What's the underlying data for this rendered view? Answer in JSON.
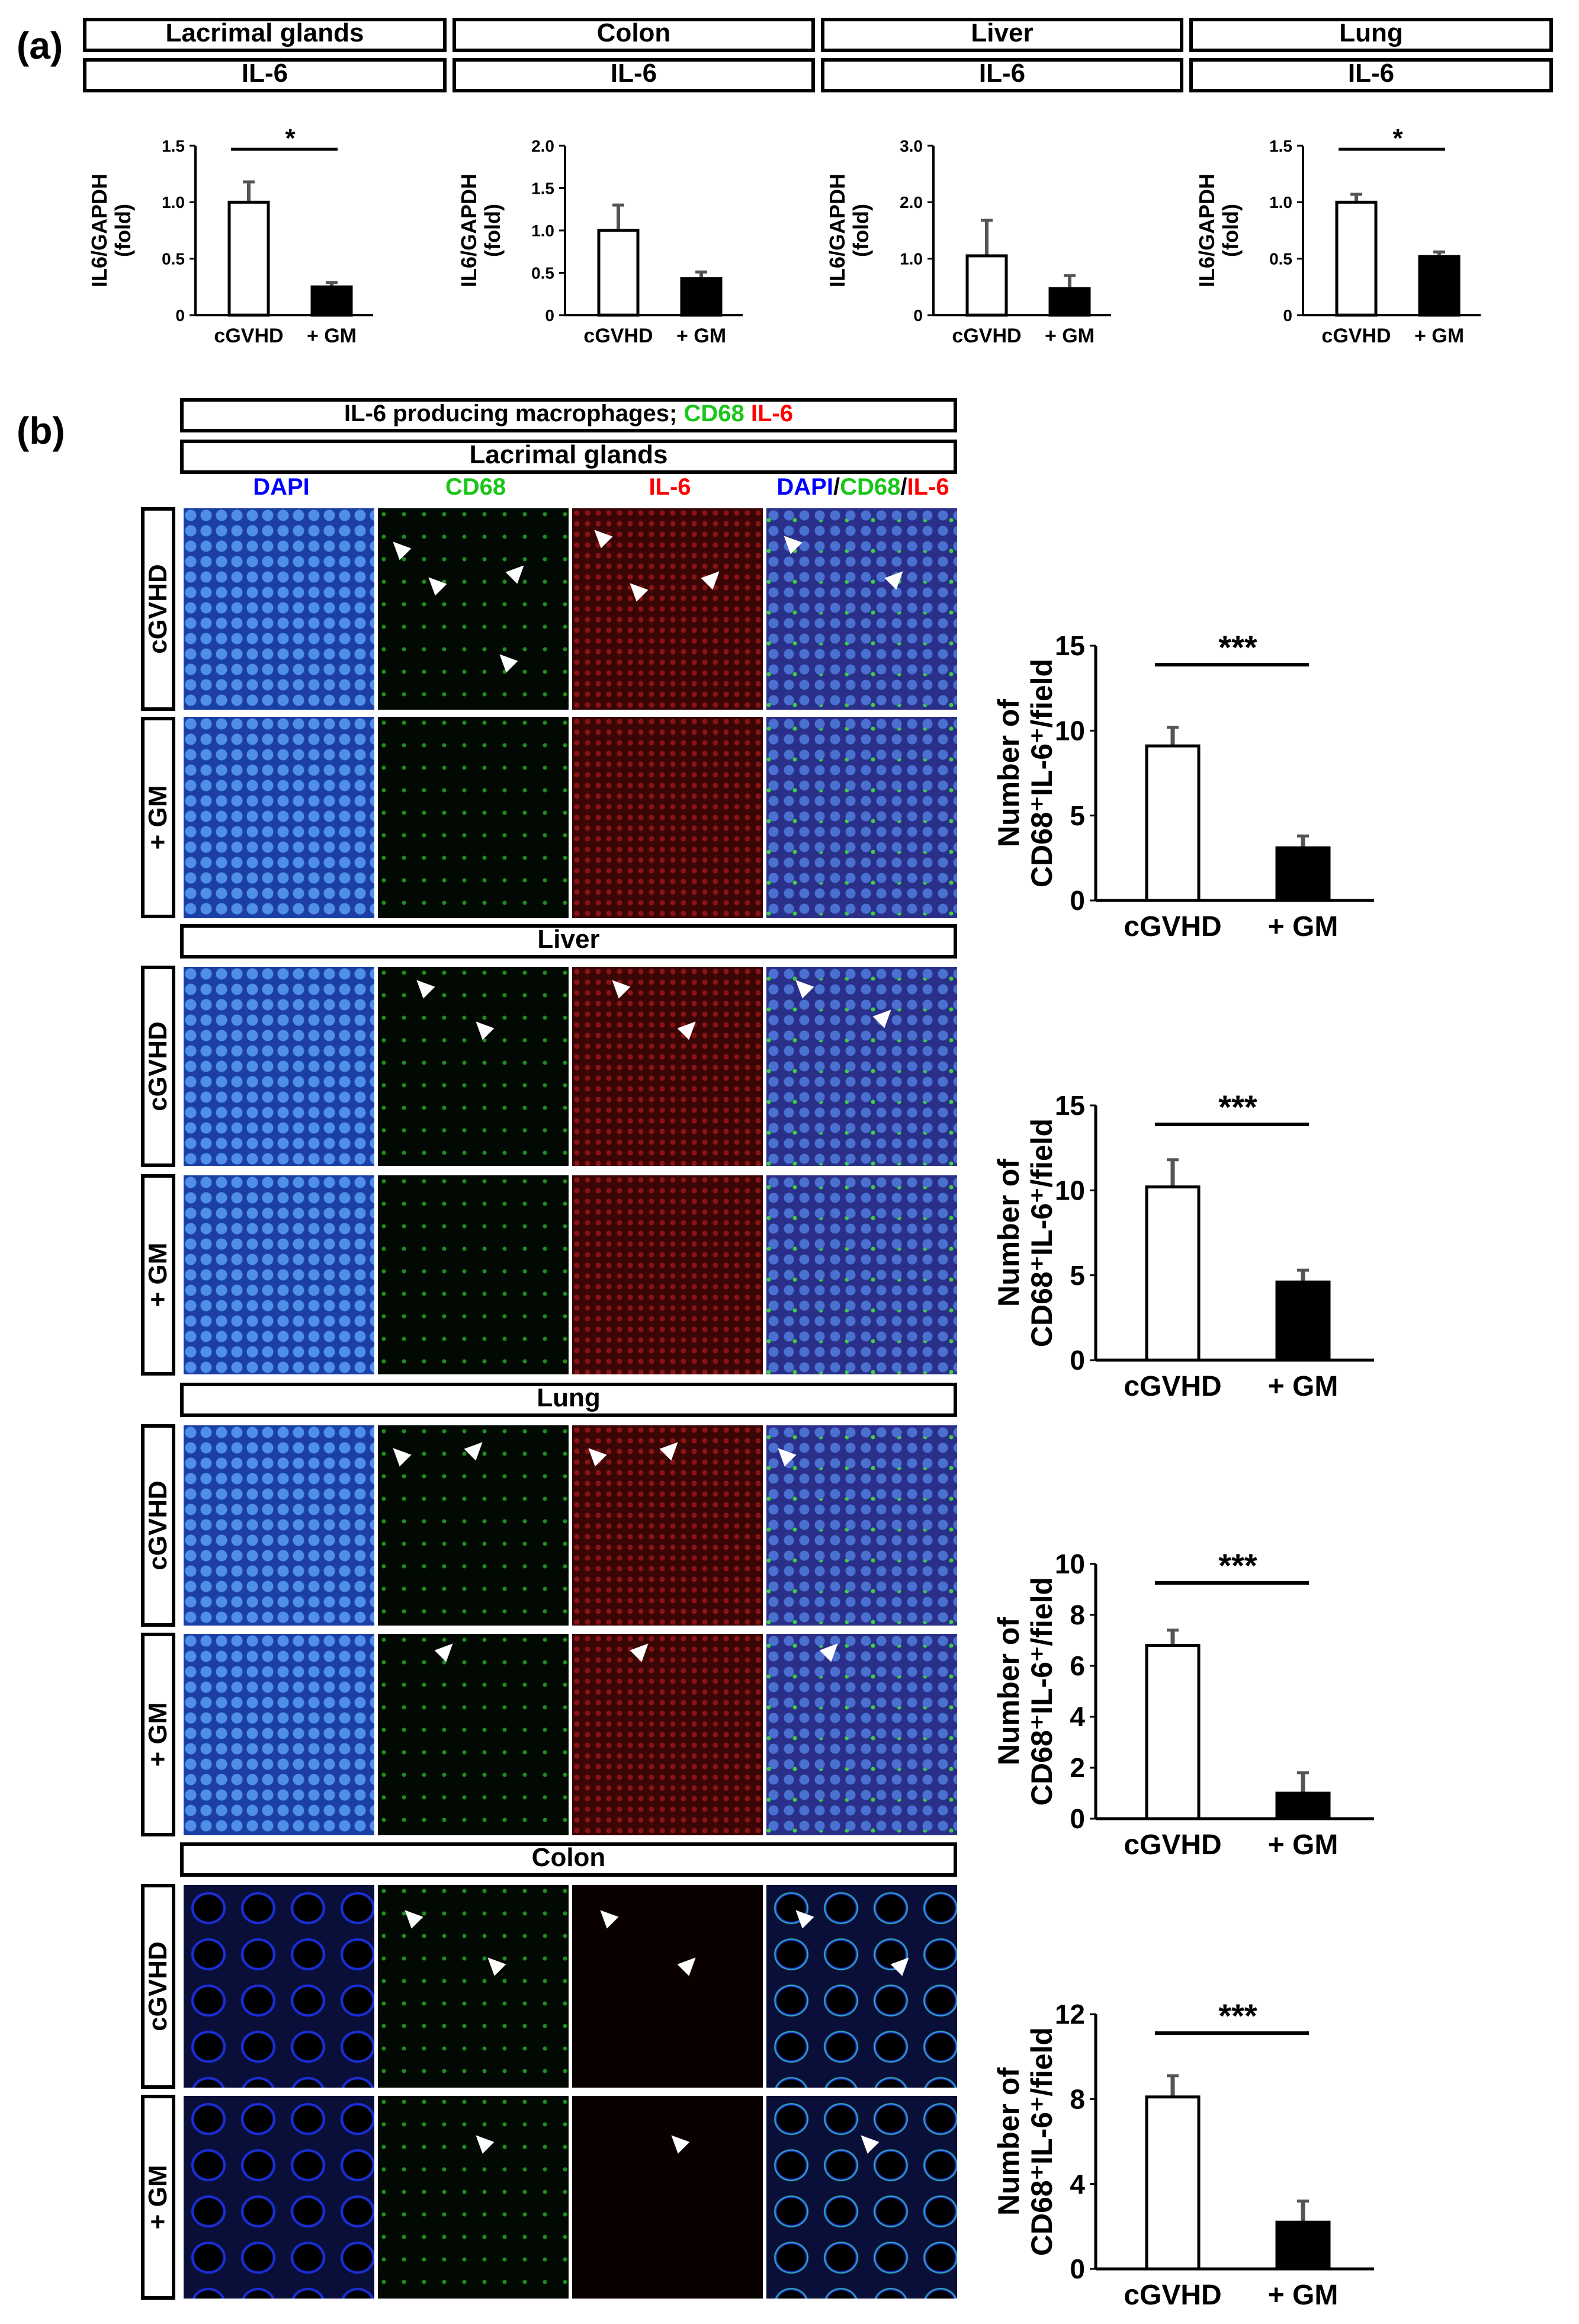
{
  "panel_a": {
    "letter": "(a)",
    "headers": [
      {
        "tissue": "Lacrimal glands",
        "marker": "IL-6"
      },
      {
        "tissue": "Colon",
        "marker": "IL-6"
      },
      {
        "tissue": "Liver",
        "marker": "IL-6"
      },
      {
        "tissue": "Lung",
        "marker": "IL-6"
      }
    ]
  },
  "panel_b": {
    "letter": "(b)",
    "title_prefix": "IL-6 producing macrophages; ",
    "title_cd68": "CD68",
    "title_il6": "IL-6",
    "column_headers": {
      "dapi": "DAPI",
      "cd68": "CD68",
      "il6": "IL-6",
      "merge_dapi": "DAPI",
      "merge_sep1": "/",
      "merge_cd68": "CD68",
      "merge_sep2": "/",
      "merge_il6": "IL-6"
    },
    "sections": [
      {
        "tissue": "Lacrimal glands",
        "rows": [
          "cGVHD",
          "+ GM"
        ]
      },
      {
        "tissue": "Liver",
        "rows": [
          "cGVHD",
          "+ GM"
        ]
      },
      {
        "tissue": "Lung",
        "rows": [
          "cGVHD",
          "+ GM"
        ]
      },
      {
        "tissue": "Colon",
        "rows": [
          "cGVHD",
          "+ GM"
        ]
      }
    ]
  },
  "colors": {
    "dapi": "#0000ff",
    "cd68": "#19c619",
    "il6": "#ff0000",
    "bar_control": "#ffffff",
    "bar_treated": "#000000",
    "error_bar": "#555555"
  },
  "chart_data": [
    {
      "type": "bar",
      "panel": "a",
      "tissue": "Lacrimal glands",
      "categories": [
        "cGVHD",
        "+ GM"
      ],
      "values": [
        1.0,
        0.25
      ],
      "errors": [
        0.18,
        0.04
      ],
      "ylabel": "IL6/GAPDH\n(fold)",
      "ylim": [
        0,
        1.5
      ],
      "yticks": [
        "0",
        "0.5",
        "1.0",
        "1.5"
      ],
      "significance": "*"
    },
    {
      "type": "bar",
      "panel": "a",
      "tissue": "Colon",
      "categories": [
        "cGVHD",
        "+ GM"
      ],
      "values": [
        1.0,
        0.43
      ],
      "errors": [
        0.3,
        0.08
      ],
      "ylabel": "IL6/GAPDH\n(fold)",
      "ylim": [
        0,
        2.0
      ],
      "yticks": [
        "0",
        "0.5",
        "1.0",
        "1.5",
        "2.0"
      ],
      "significance": ""
    },
    {
      "type": "bar",
      "panel": "a",
      "tissue": "Liver",
      "categories": [
        "cGVHD",
        "+ GM"
      ],
      "values": [
        1.05,
        0.47
      ],
      "errors": [
        0.63,
        0.23
      ],
      "ylabel": "IL6/GAPDH\n(fold)",
      "ylim": [
        0,
        3.0
      ],
      "yticks": [
        "0",
        "1.0",
        "2.0",
        "3.0"
      ],
      "significance": ""
    },
    {
      "type": "bar",
      "panel": "a",
      "tissue": "Lung",
      "categories": [
        "cGVHD",
        "+ GM"
      ],
      "values": [
        1.0,
        0.52
      ],
      "errors": [
        0.07,
        0.04
      ],
      "ylabel": "IL6/GAPDH\n(fold)",
      "ylim": [
        0,
        1.5
      ],
      "yticks": [
        "0",
        "0.5",
        "1.0",
        "1.5"
      ],
      "significance": "*"
    },
    {
      "type": "bar",
      "panel": "b",
      "tissue": "Lacrimal glands",
      "categories": [
        "cGVHD",
        "+ GM"
      ],
      "values": [
        9.1,
        3.1
      ],
      "errors": [
        1.1,
        0.7
      ],
      "ylabel_line1": "Number of",
      "ylabel_line2": "CD68⁺IL-6⁺/field",
      "ylim": [
        0,
        15
      ],
      "yticks": [
        "0",
        "5",
        "10",
        "15"
      ],
      "significance": "***"
    },
    {
      "type": "bar",
      "panel": "b",
      "tissue": "Liver",
      "categories": [
        "cGVHD",
        "+ GM"
      ],
      "values": [
        10.2,
        4.6
      ],
      "errors": [
        1.6,
        0.7
      ],
      "ylabel_line1": "Number of",
      "ylabel_line2": "CD68⁺IL-6⁺/field",
      "ylim": [
        0,
        15
      ],
      "yticks": [
        "0",
        "5",
        "10",
        "15"
      ],
      "significance": "***"
    },
    {
      "type": "bar",
      "panel": "b",
      "tissue": "Lung",
      "categories": [
        "cGVHD",
        "+ GM"
      ],
      "values": [
        6.8,
        1.0
      ],
      "errors": [
        0.6,
        0.8
      ],
      "ylabel_line1": "Number of",
      "ylabel_line2": "CD68⁺IL-6⁺/field",
      "ylim": [
        0,
        10
      ],
      "yticks": [
        "0",
        "2",
        "4",
        "6",
        "8",
        "10"
      ],
      "significance": "***"
    },
    {
      "type": "bar",
      "panel": "b",
      "tissue": "Colon",
      "categories": [
        "cGVHD",
        "+ GM"
      ],
      "values": [
        8.1,
        2.2
      ],
      "errors": [
        1.0,
        1.0
      ],
      "ylabel_line1": "Number of",
      "ylabel_line2": "CD68⁺IL-6⁺/field",
      "ylim": [
        0,
        12
      ],
      "yticks": [
        "0",
        "4",
        "8",
        "12"
      ],
      "significance": "***"
    }
  ]
}
